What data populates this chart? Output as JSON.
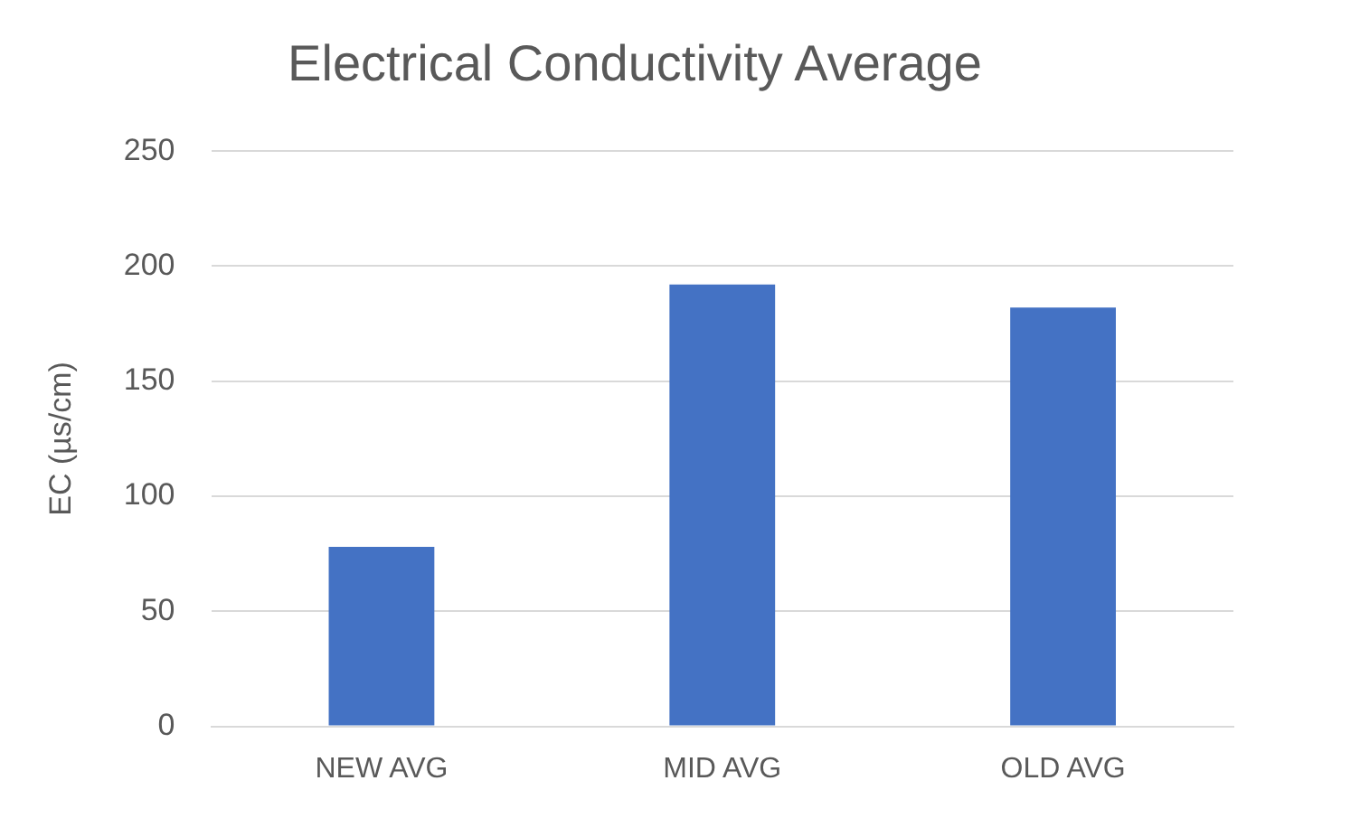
{
  "chart_data": {
    "type": "bar",
    "title": "Electrical Conductivity Average",
    "ylabel": "EC (µs/cm)",
    "categories": [
      "NEW AVG",
      "MID AVG",
      "OLD AVG"
    ],
    "values": [
      78,
      192,
      182
    ],
    "color": "#4472c4",
    "ylim": [
      0,
      250
    ],
    "yticks": [
      0,
      50,
      100,
      150,
      200,
      250
    ],
    "grid": "y",
    "legend": false
  }
}
